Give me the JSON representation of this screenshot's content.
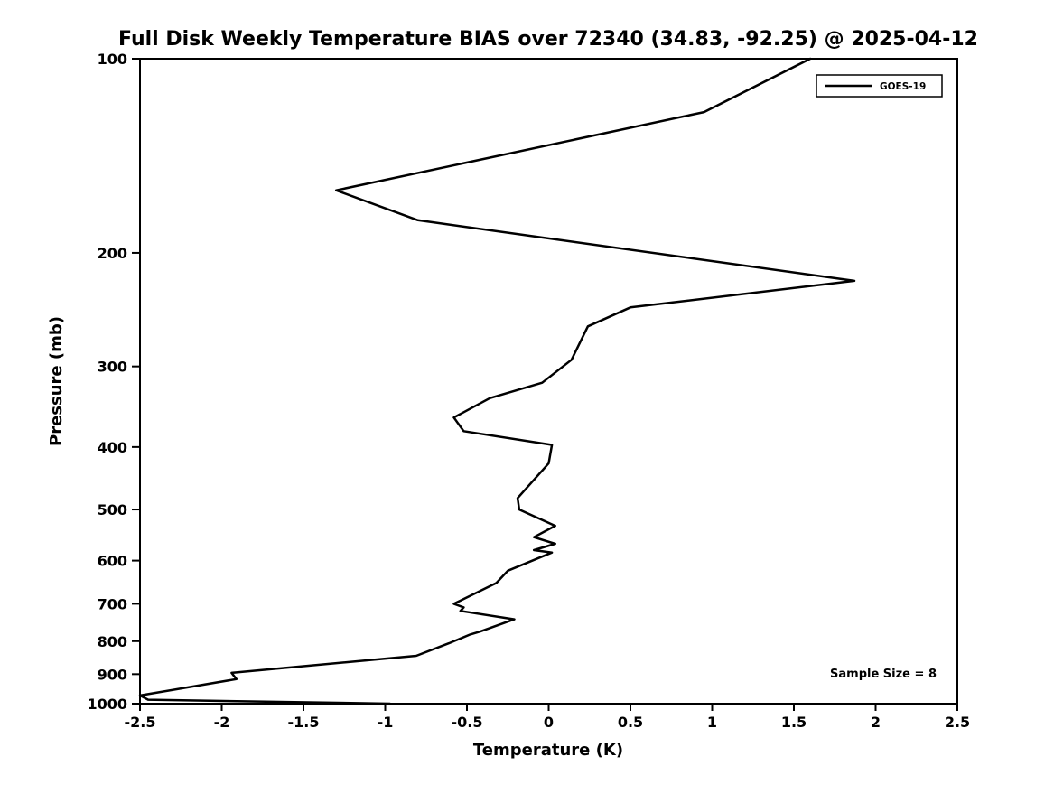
{
  "chart_data": {
    "type": "line",
    "title": "Full Disk Weekly Temperature BIAS over 72340 (34.83, -92.25) @ 2025-04-12",
    "xlabel": "Temperature (K)",
    "ylabel": "Pressure (mb)",
    "xlim": [
      -2.5,
      2.5
    ],
    "ylim": [
      1000,
      100
    ],
    "y_scale": "log",
    "grid": false,
    "x_ticks": [
      -2.5,
      -2,
      -1.5,
      -1,
      -0.5,
      0,
      0.5,
      1,
      1.5,
      2,
      2.5
    ],
    "y_ticks": [
      100,
      200,
      300,
      400,
      500,
      600,
      700,
      800,
      900,
      1000
    ],
    "legend_position": "top-right",
    "annotation": "Sample Size = 8",
    "axis_color": "#000000",
    "series": [
      {
        "name": "GOES-19",
        "color": "#000000",
        "points": [
          {
            "pressure": 100,
            "bias": 1.6
          },
          {
            "pressure": 121,
            "bias": 0.95
          },
          {
            "pressure": 160,
            "bias": -1.3
          },
          {
            "pressure": 178,
            "bias": -0.8
          },
          {
            "pressure": 221,
            "bias": 1.87
          },
          {
            "pressure": 243,
            "bias": 0.5
          },
          {
            "pressure": 260,
            "bias": 0.24
          },
          {
            "pressure": 293,
            "bias": 0.14
          },
          {
            "pressure": 318,
            "bias": -0.04
          },
          {
            "pressure": 336,
            "bias": -0.36
          },
          {
            "pressure": 360,
            "bias": -0.58
          },
          {
            "pressure": 378,
            "bias": -0.52
          },
          {
            "pressure": 397,
            "bias": 0.02
          },
          {
            "pressure": 424,
            "bias": 0.0
          },
          {
            "pressure": 480,
            "bias": -0.19
          },
          {
            "pressure": 500,
            "bias": -0.18
          },
          {
            "pressure": 530,
            "bias": 0.04
          },
          {
            "pressure": 552,
            "bias": -0.09
          },
          {
            "pressure": 565,
            "bias": 0.04
          },
          {
            "pressure": 578,
            "bias": -0.09
          },
          {
            "pressure": 583,
            "bias": 0.02
          },
          {
            "pressure": 622,
            "bias": -0.25
          },
          {
            "pressure": 650,
            "bias": -0.32
          },
          {
            "pressure": 700,
            "bias": -0.58
          },
          {
            "pressure": 709,
            "bias": -0.52
          },
          {
            "pressure": 718,
            "bias": -0.54
          },
          {
            "pressure": 740,
            "bias": -0.21
          },
          {
            "pressure": 773,
            "bias": -0.42
          },
          {
            "pressure": 781,
            "bias": -0.48
          },
          {
            "pressure": 806,
            "bias": -0.61
          },
          {
            "pressure": 843,
            "bias": -0.81
          },
          {
            "pressure": 896,
            "bias": -1.94
          },
          {
            "pressure": 916,
            "bias": -1.91
          },
          {
            "pressure": 971,
            "bias": -2.5
          },
          {
            "pressure": 986,
            "bias": -2.45
          },
          {
            "pressure": 1000,
            "bias": -0.97
          }
        ]
      }
    ]
  }
}
